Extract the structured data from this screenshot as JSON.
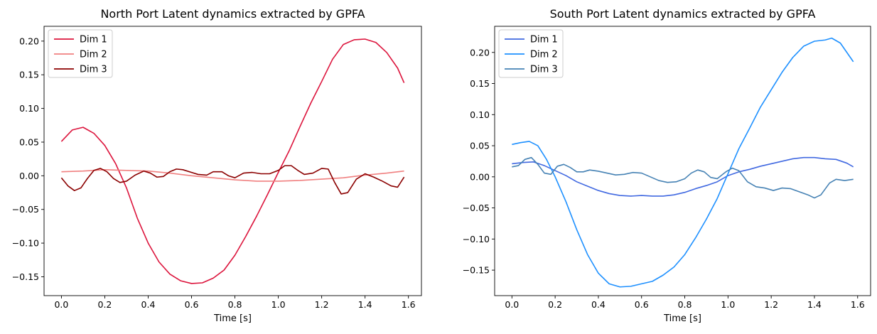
{
  "chart_data": [
    {
      "type": "line",
      "title": "North Port Latent dynamics extracted by GPFA",
      "xlabel": "Time [s]",
      "ylabel": "",
      "xlim": [
        -0.08,
        1.66
      ],
      "ylim": [
        -0.178,
        0.222
      ],
      "xticks": [
        0.0,
        0.2,
        0.4,
        0.6,
        0.8,
        1.0,
        1.2,
        1.4,
        1.6
      ],
      "xtick_labels": [
        "0.0",
        "0.2",
        "0.4",
        "0.6",
        "0.8",
        "1.0",
        "1.2",
        "1.4",
        "1.6"
      ],
      "yticks": [
        -0.15,
        -0.1,
        -0.05,
        0.0,
        0.05,
        0.1,
        0.15,
        0.2
      ],
      "ytick_labels": [
        "−0.15",
        "−0.10",
        "−0.05",
        "0.00",
        "0.05",
        "0.10",
        "0.15",
        "0.20"
      ],
      "grid": false,
      "legend": "top-left",
      "series": [
        {
          "name": "Dim 1",
          "color": "#dc143c",
          "x": [
            0.0,
            0.05,
            0.1,
            0.15,
            0.2,
            0.25,
            0.3,
            0.35,
            0.4,
            0.45,
            0.5,
            0.55,
            0.6,
            0.65,
            0.7,
            0.75,
            0.8,
            0.85,
            0.9,
            0.95,
            1.0,
            1.05,
            1.1,
            1.15,
            1.2,
            1.25,
            1.3,
            1.35,
            1.4,
            1.45,
            1.5,
            1.55,
            1.58
          ],
          "y": [
            0.051,
            0.068,
            0.072,
            0.063,
            0.045,
            0.018,
            -0.018,
            -0.063,
            -0.1,
            -0.128,
            -0.146,
            -0.156,
            -0.16,
            -0.159,
            -0.152,
            -0.14,
            -0.118,
            -0.09,
            -0.06,
            -0.028,
            0.005,
            0.037,
            0.073,
            0.108,
            0.14,
            0.173,
            0.195,
            0.202,
            0.203,
            0.198,
            0.183,
            0.16,
            0.138
          ]
        },
        {
          "name": "Dim 2",
          "color": "#f08080",
          "x": [
            0.0,
            0.1,
            0.2,
            0.3,
            0.4,
            0.5,
            0.6,
            0.7,
            0.8,
            0.9,
            1.0,
            1.1,
            1.2,
            1.3,
            1.4,
            1.5,
            1.58
          ],
          "y": [
            0.006,
            0.007,
            0.009,
            0.008,
            0.007,
            0.004,
            0.0,
            -0.003,
            -0.006,
            -0.008,
            -0.008,
            -0.007,
            -0.005,
            -0.003,
            0.001,
            0.004,
            0.007
          ]
        },
        {
          "name": "Dim 3",
          "color": "#8b0000",
          "x": [
            0.0,
            0.03,
            0.06,
            0.09,
            0.12,
            0.15,
            0.18,
            0.21,
            0.24,
            0.27,
            0.3,
            0.34,
            0.38,
            0.41,
            0.44,
            0.47,
            0.5,
            0.53,
            0.56,
            0.6,
            0.63,
            0.67,
            0.7,
            0.74,
            0.77,
            0.8,
            0.84,
            0.88,
            0.92,
            0.96,
            1.0,
            1.03,
            1.06,
            1.09,
            1.12,
            1.16,
            1.2,
            1.23,
            1.26,
            1.29,
            1.32,
            1.36,
            1.4,
            1.44,
            1.48,
            1.52,
            1.55,
            1.58
          ],
          "y": [
            -0.003,
            -0.015,
            -0.022,
            -0.018,
            -0.004,
            0.008,
            0.011,
            0.006,
            -0.004,
            -0.01,
            -0.008,
            0.001,
            0.007,
            0.004,
            -0.002,
            -0.001,
            0.006,
            0.01,
            0.009,
            0.005,
            0.002,
            0.001,
            0.006,
            0.006,
            0.0,
            -0.003,
            0.004,
            0.005,
            0.003,
            0.003,
            0.008,
            0.015,
            0.015,
            0.008,
            0.002,
            0.004,
            0.011,
            0.01,
            -0.01,
            -0.027,
            -0.025,
            -0.005,
            0.003,
            -0.002,
            -0.008,
            -0.015,
            -0.017,
            -0.002
          ]
        }
      ]
    },
    {
      "type": "line",
      "title": "South Port Latent dynamics extracted by GPFA",
      "xlabel": "Time [s]",
      "ylabel": "",
      "xlim": [
        -0.08,
        1.66
      ],
      "ylim": [
        -0.191,
        0.242
      ],
      "xticks": [
        0.0,
        0.2,
        0.4,
        0.6,
        0.8,
        1.0,
        1.2,
        1.4,
        1.6
      ],
      "xtick_labels": [
        "0.0",
        "0.2",
        "0.4",
        "0.6",
        "0.8",
        "1.0",
        "1.2",
        "1.4",
        "1.6"
      ],
      "yticks": [
        -0.15,
        -0.1,
        -0.05,
        0.0,
        0.05,
        0.1,
        0.15,
        0.2
      ],
      "ytick_labels": [
        "−0.15",
        "−0.10",
        "−0.05",
        "0.00",
        "0.05",
        "0.10",
        "0.15",
        "0.20"
      ],
      "grid": false,
      "legend": "top-left",
      "series": [
        {
          "name": "Dim 1",
          "color": "#4169e1",
          "x": [
            0.0,
            0.05,
            0.1,
            0.15,
            0.2,
            0.25,
            0.3,
            0.35,
            0.4,
            0.45,
            0.5,
            0.55,
            0.6,
            0.65,
            0.7,
            0.75,
            0.8,
            0.85,
            0.9,
            0.95,
            1.0,
            1.05,
            1.1,
            1.15,
            1.2,
            1.25,
            1.3,
            1.35,
            1.4,
            1.45,
            1.5,
            1.55,
            1.58
          ],
          "y": [
            0.021,
            0.023,
            0.024,
            0.018,
            0.01,
            0.002,
            -0.008,
            -0.015,
            -0.022,
            -0.027,
            -0.03,
            -0.031,
            -0.03,
            -0.031,
            -0.031,
            -0.029,
            -0.025,
            -0.019,
            -0.014,
            -0.008,
            0.002,
            0.008,
            0.012,
            0.017,
            0.021,
            0.025,
            0.029,
            0.031,
            0.031,
            0.029,
            0.028,
            0.022,
            0.016
          ]
        },
        {
          "name": "Dim 2",
          "color": "#1e90ff",
          "x": [
            0.0,
            0.04,
            0.08,
            0.12,
            0.16,
            0.2,
            0.25,
            0.3,
            0.35,
            0.4,
            0.45,
            0.5,
            0.55,
            0.6,
            0.65,
            0.7,
            0.75,
            0.8,
            0.85,
            0.9,
            0.95,
            1.0,
            1.05,
            1.1,
            1.15,
            1.2,
            1.25,
            1.3,
            1.35,
            1.4,
            1.45,
            1.48,
            1.52,
            1.55,
            1.58
          ],
          "y": [
            0.052,
            0.055,
            0.057,
            0.05,
            0.028,
            0.0,
            -0.04,
            -0.085,
            -0.125,
            -0.155,
            -0.172,
            -0.177,
            -0.176,
            -0.172,
            -0.168,
            -0.158,
            -0.145,
            -0.125,
            -0.098,
            -0.068,
            -0.035,
            0.005,
            0.045,
            0.078,
            0.112,
            0.14,
            0.168,
            0.192,
            0.21,
            0.218,
            0.22,
            0.223,
            0.215,
            0.2,
            0.185
          ]
        },
        {
          "name": "Dim 3",
          "color": "#4682b4",
          "x": [
            0.0,
            0.03,
            0.06,
            0.09,
            0.12,
            0.15,
            0.18,
            0.21,
            0.24,
            0.27,
            0.3,
            0.33,
            0.36,
            0.4,
            0.44,
            0.48,
            0.52,
            0.56,
            0.6,
            0.64,
            0.68,
            0.72,
            0.76,
            0.8,
            0.83,
            0.86,
            0.89,
            0.92,
            0.95,
            0.99,
            1.02,
            1.05,
            1.09,
            1.13,
            1.17,
            1.21,
            1.25,
            1.29,
            1.33,
            1.37,
            1.4,
            1.43,
            1.47,
            1.5,
            1.54,
            1.58
          ],
          "y": [
            0.016,
            0.018,
            0.028,
            0.031,
            0.02,
            0.006,
            0.004,
            0.017,
            0.02,
            0.015,
            0.008,
            0.008,
            0.011,
            0.009,
            0.006,
            0.003,
            0.004,
            0.007,
            0.006,
            0.0,
            -0.006,
            -0.009,
            -0.008,
            -0.003,
            0.006,
            0.011,
            0.008,
            -0.001,
            -0.003,
            0.008,
            0.014,
            0.01,
            -0.008,
            -0.016,
            -0.018,
            -0.022,
            -0.018,
            -0.019,
            -0.024,
            -0.029,
            -0.034,
            -0.029,
            -0.01,
            -0.004,
            -0.006,
            -0.004
          ]
        }
      ]
    }
  ]
}
